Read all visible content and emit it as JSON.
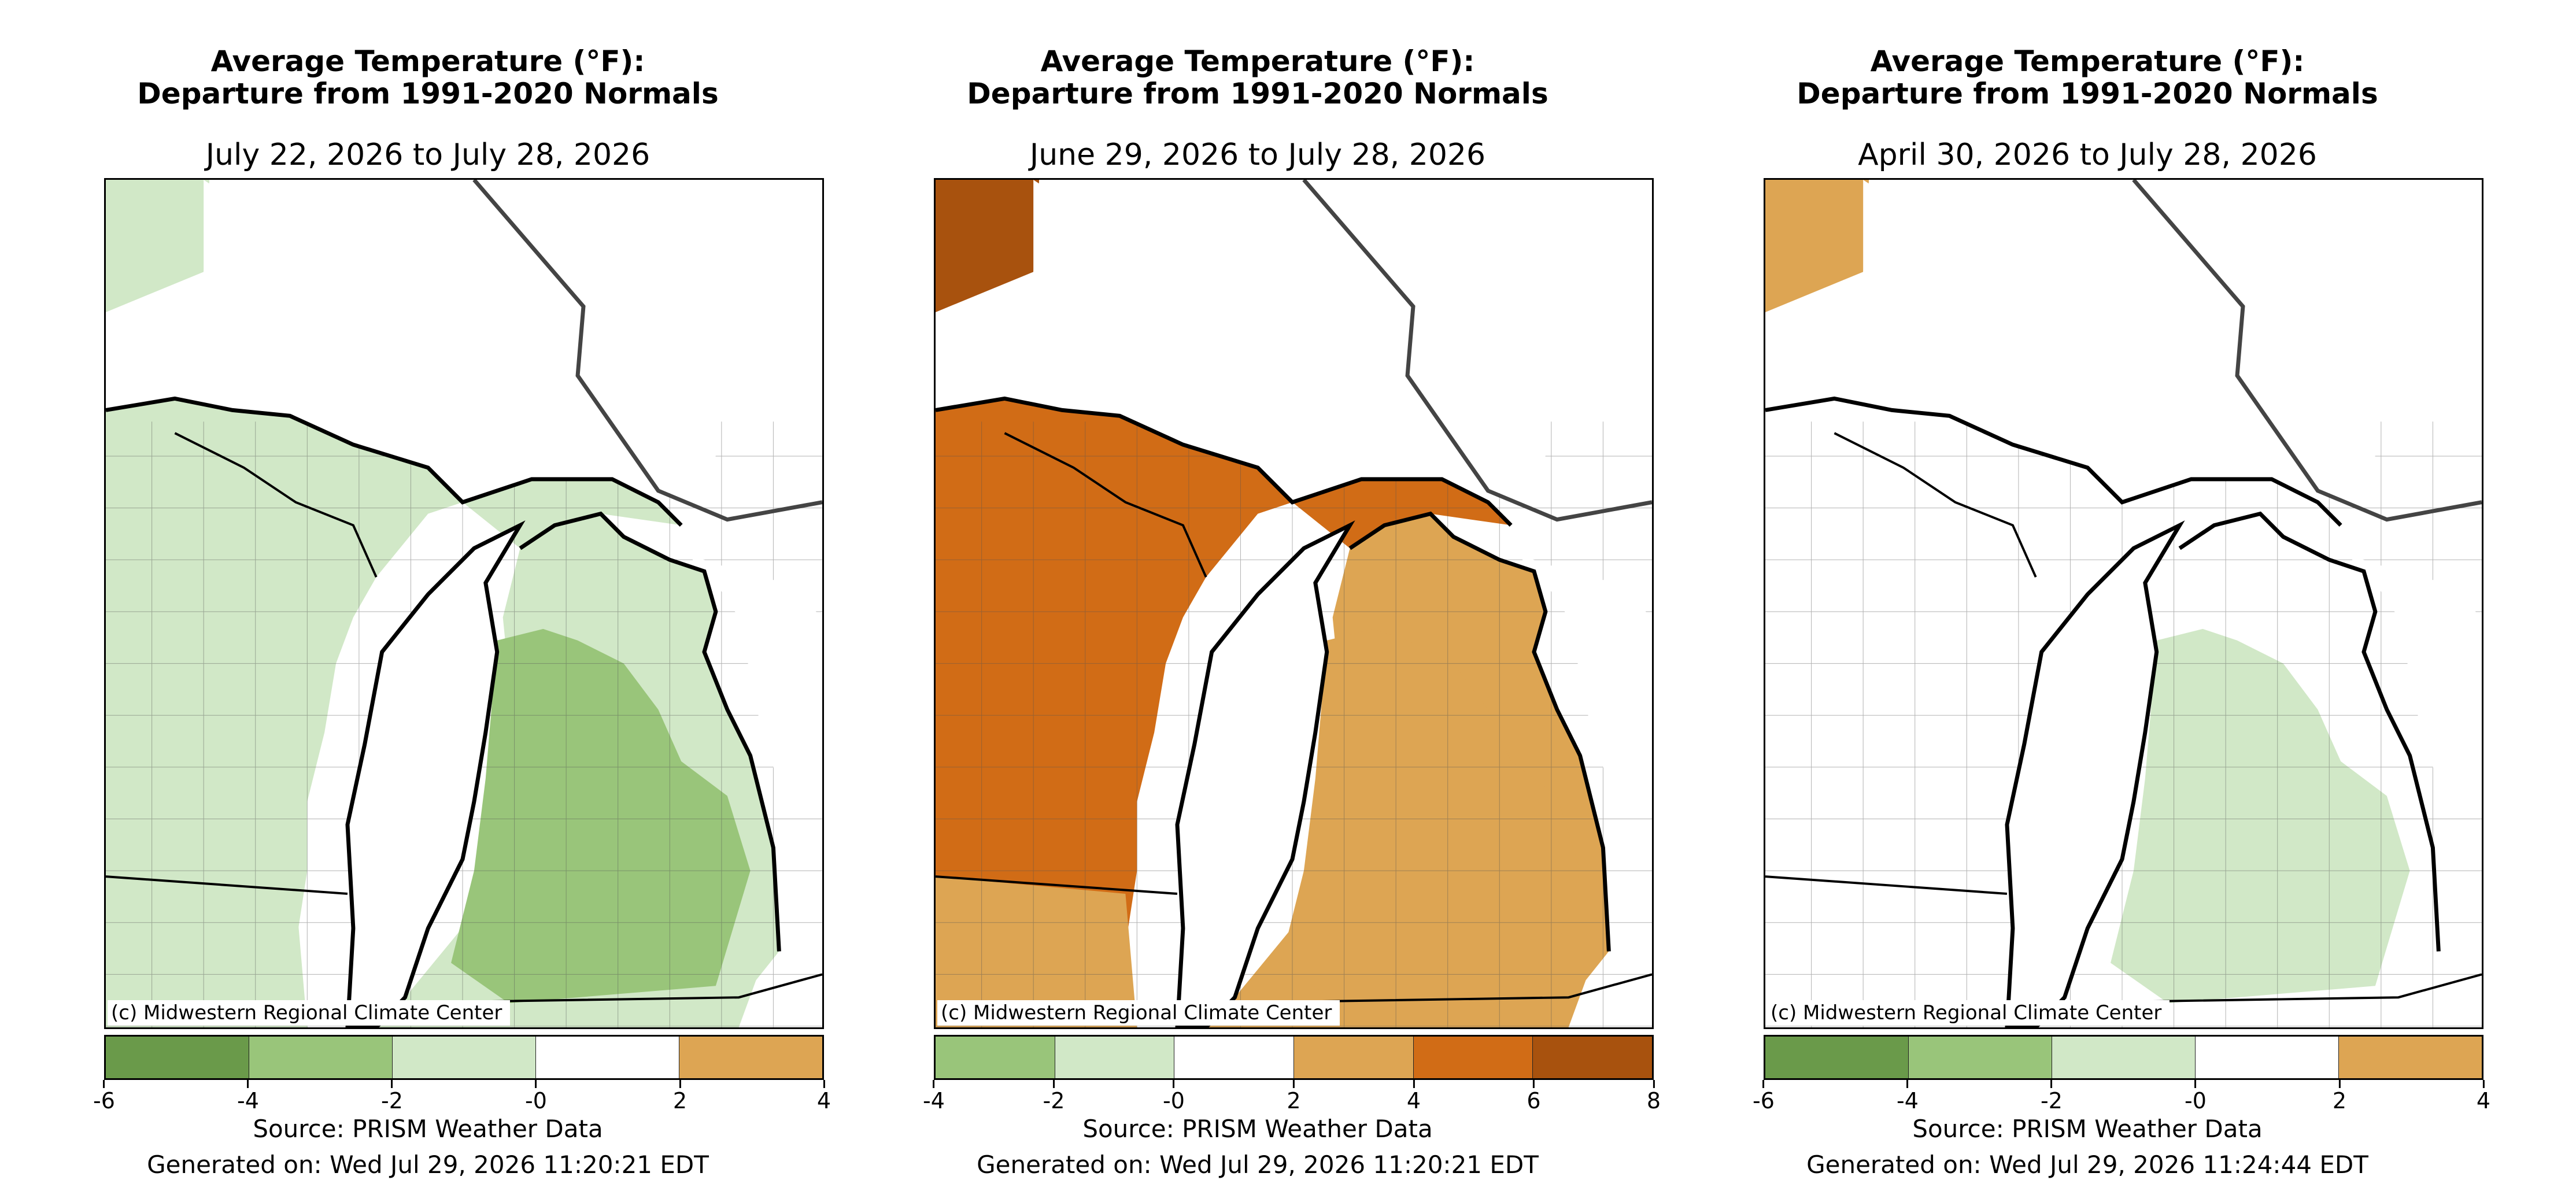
{
  "colors": {
    "dark_green": "#6a9a4a",
    "green": "#99c57a",
    "light_green": "#d1e8c7",
    "white": "#ffffff",
    "tan": "#dda553",
    "orange": "#d16c16",
    "dark_orange": "#a8520e",
    "outline": "#000000",
    "border_gray": "#444444"
  },
  "panels": [
    {
      "title_line1": "Average Temperature (°F):",
      "title_line2": "Departure from 1991-2020 Normals",
      "date_range": "July 22, 2026 to July 28, 2026",
      "credit": "(c) Midwestern Regional Climate Center",
      "source": "Source: PRISM Weather Data",
      "generated": "Generated on: Wed Jul 29, 2026 11:20:21 EDT",
      "colorbar": {
        "ticks": [
          "-6",
          "-4",
          "-2",
          "-0",
          "2",
          "4"
        ],
        "colors": [
          "#6a9a4a",
          "#99c57a",
          "#d1e8c7",
          "#ffffff",
          "#dda553"
        ]
      },
      "map_fill": {
        "west_up": "#d1e8c7",
        "wi": "#d1e8c7",
        "lower_mi": "#d1e8c7",
        "lower_mi_core": "#99c57a",
        "minn": "#d1e8c7",
        "il": "#d1e8c7"
      }
    },
    {
      "title_line1": "Average Temperature (°F):",
      "title_line2": "Departure from 1991-2020 Normals",
      "date_range": "June 29, 2026 to July 28, 2026",
      "credit": "(c) Midwestern Regional Climate Center",
      "source": "Source: PRISM Weather Data",
      "generated": "Generated on: Wed Jul 29, 2026 11:20:21 EDT",
      "colorbar": {
        "ticks": [
          "-4",
          "-2",
          "-0",
          "2",
          "4",
          "6",
          "8"
        ],
        "colors": [
          "#99c57a",
          "#d1e8c7",
          "#ffffff",
          "#dda553",
          "#d16c16",
          "#a8520e"
        ]
      },
      "map_fill": {
        "west_up": "#d16c16",
        "wi": "#d16c16",
        "lower_mi": "#dda553",
        "lower_mi_core": "#dda553",
        "minn": "#a8520e",
        "il": "#dda553"
      }
    },
    {
      "title_line1": "Average Temperature (°F):",
      "title_line2": "Departure from 1991-2020 Normals",
      "date_range": "April 30, 2026 to July 28, 2026",
      "credit": "(c) Midwestern Regional Climate Center",
      "source": "Source: PRISM Weather Data",
      "generated": "Generated on: Wed Jul 29, 2026 11:24:44 EDT",
      "colorbar": {
        "ticks": [
          "-6",
          "-4",
          "-2",
          "-0",
          "2",
          "4"
        ],
        "colors": [
          "#6a9a4a",
          "#99c57a",
          "#d1e8c7",
          "#ffffff",
          "#dda553"
        ]
      },
      "map_fill": {
        "west_up": "#ffffff",
        "wi": "#ffffff",
        "lower_mi": "#ffffff",
        "lower_mi_core": "#d1e8c7",
        "minn": "#dda553",
        "il": "#ffffff"
      }
    }
  ]
}
